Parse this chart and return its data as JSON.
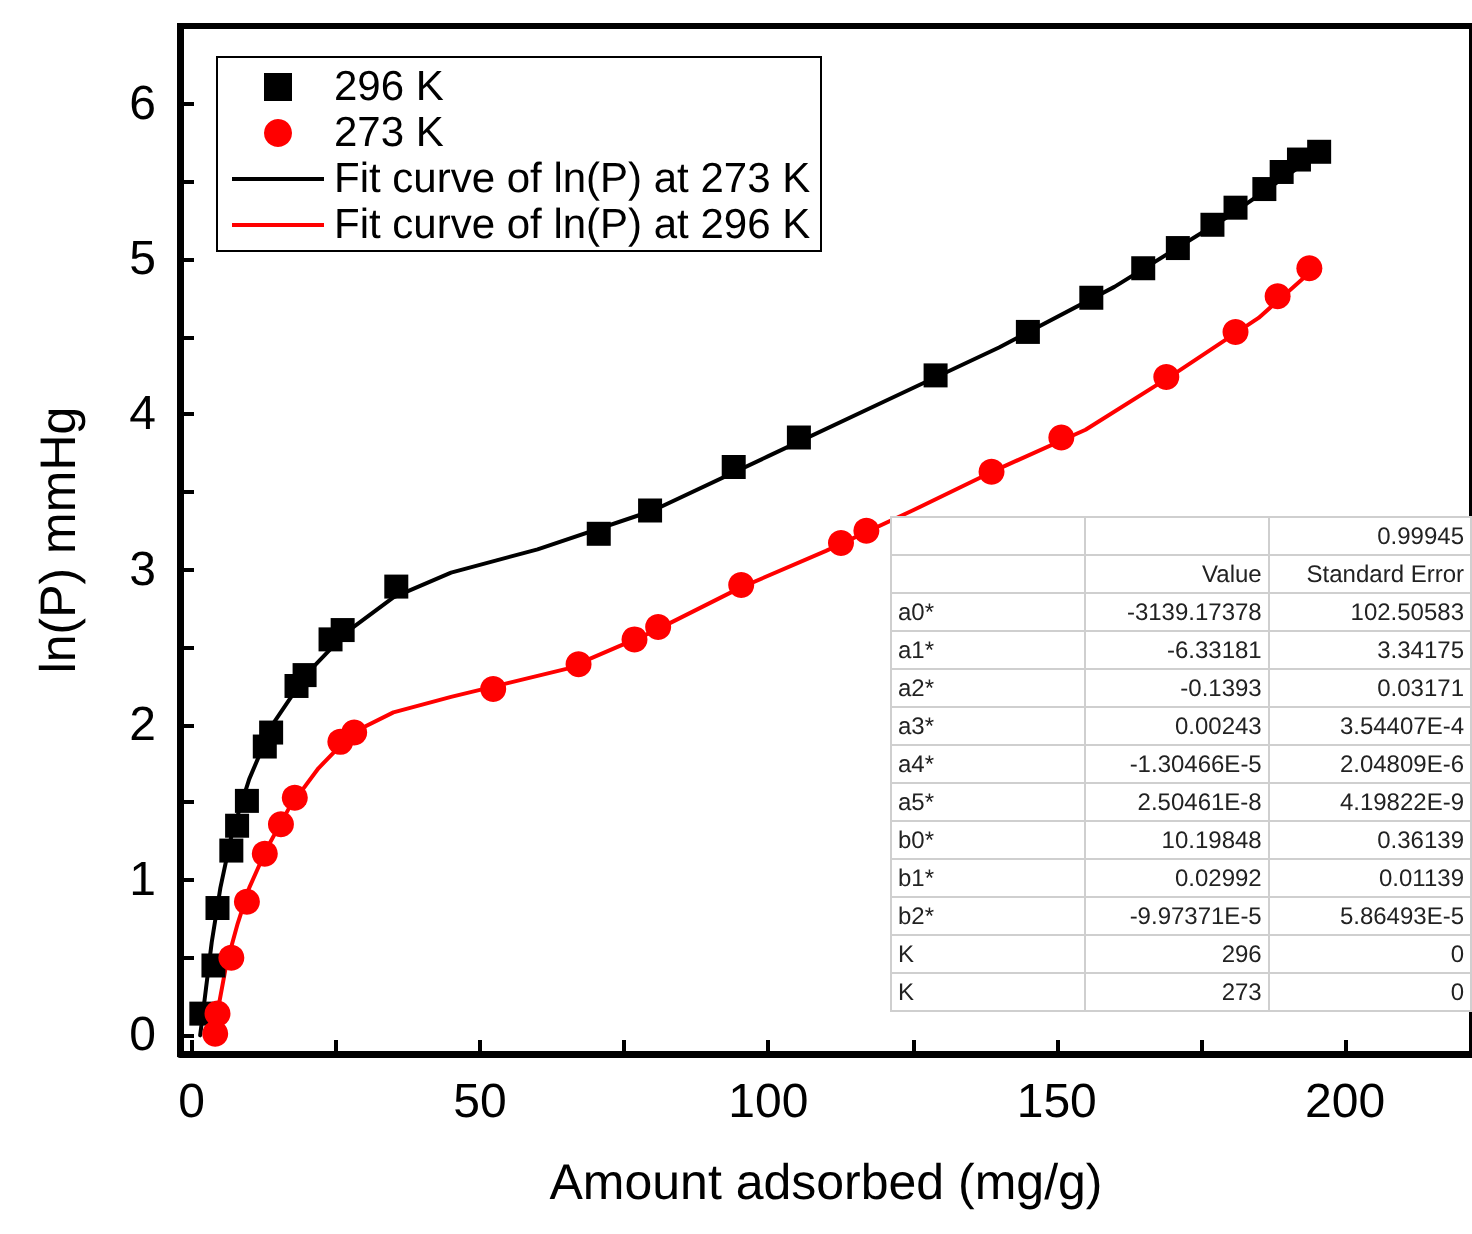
{
  "chart_data": {
    "type": "scatter",
    "xlabel": "Amount adsorbed (mg/g)",
    "ylabel": "ln(P) mmHg",
    "xlim": [
      -2,
      222
    ],
    "ylim": [
      -0.12,
      6.5
    ],
    "xticks": [
      0,
      {
        "value": 25,
        "label": null
      },
      50,
      {
        "value": 75,
        "label": null
      },
      100,
      {
        "value": 125,
        "label": null
      },
      150,
      {
        "value": 175,
        "label": null
      },
      200
    ],
    "yticks": [
      0,
      {
        "value": 0.5,
        "label": null
      },
      1,
      {
        "value": 1.5,
        "label": null
      },
      2,
      {
        "value": 2.5,
        "label": null
      },
      3,
      {
        "value": 3.5,
        "label": null
      },
      4,
      {
        "value": 4.5,
        "label": null
      },
      5,
      {
        "value": 5.5,
        "label": null
      },
      6
    ],
    "legend": "top left",
    "grid": false,
    "series": [
      {
        "name": "296 K",
        "type": "scatter",
        "marker": "square",
        "color": "#000000",
        "x": [
          1.7,
          3.8,
          4.5,
          6.9,
          7.9,
          9.6,
          12.7,
          13.8,
          18.2,
          19.6,
          24.1,
          26.2,
          35.5,
          70.6,
          79.5,
          94,
          105.3,
          129,
          145,
          156,
          165,
          171,
          177,
          181,
          186,
          189,
          192,
          195.5
        ],
        "values": [
          0.14,
          0.45,
          0.82,
          1.19,
          1.35,
          1.51,
          1.86,
          1.95,
          2.25,
          2.32,
          2.55,
          2.61,
          2.89,
          3.23,
          3.38,
          3.66,
          3.85,
          4.25,
          4.53,
          4.75,
          4.94,
          5.07,
          5.22,
          5.33,
          5.45,
          5.56,
          5.64,
          5.69
        ]
      },
      {
        "name": "273 K",
        "type": "scatter",
        "marker": "circle",
        "color": "#ff0000",
        "x": [
          4.1,
          4.5,
          6.9,
          9.6,
          12.7,
          15.5,
          17.9,
          25.8,
          28.2,
          52.3,
          67.1,
          76.8,
          80.9,
          95.3,
          112.6,
          117,
          138.7,
          150.8,
          169,
          181,
          188.3,
          193.8
        ],
        "values": [
          0.01,
          0.14,
          0.5,
          0.86,
          1.17,
          1.36,
          1.53,
          1.89,
          1.95,
          2.23,
          2.39,
          2.55,
          2.63,
          2.9,
          3.17,
          3.25,
          3.63,
          3.85,
          4.24,
          4.53,
          4.76,
          4.94
        ]
      },
      {
        "name": "Fit curve of ln(P) at 273 K",
        "type": "line",
        "marker": "none",
        "line_style": "solid",
        "color": "#000000",
        "x": [
          1.5,
          2.5,
          3.5,
          5,
          7,
          10,
          14,
          20,
          27,
          35,
          45,
          60,
          80,
          100,
          120,
          140,
          160,
          180,
          197
        ],
        "values": [
          0,
          0.3,
          0.6,
          0.95,
          1.3,
          1.65,
          2.0,
          2.33,
          2.6,
          2.82,
          2.98,
          3.13,
          3.38,
          3.73,
          4.08,
          4.43,
          4.82,
          5.28,
          5.72
        ]
      },
      {
        "name": "Fit curve of ln(P) at 296 K",
        "type": "line",
        "marker": "none",
        "line_style": "solid",
        "color": "#ff0000",
        "x": [
          3.5,
          4.5,
          6,
          8,
          10,
          13,
          17,
          22,
          28,
          35,
          45,
          55,
          65,
          80,
          95,
          110,
          125,
          140,
          155,
          170,
          185,
          195
        ],
        "values": [
          -0.05,
          0.15,
          0.45,
          0.72,
          0.95,
          1.2,
          1.47,
          1.72,
          1.95,
          2.08,
          2.18,
          2.27,
          2.36,
          2.6,
          2.88,
          3.12,
          3.38,
          3.65,
          3.9,
          4.25,
          4.62,
          4.95
        ]
      }
    ],
    "annotations": [
      "0.99945",
      "Value",
      "Standard Error",
      "a0*",
      "-3139.17378",
      "102.50583",
      "a1*",
      "-6.33181",
      "3.34175",
      "a2*",
      "-0.1393",
      "0.03171",
      "a3*",
      "0.00243",
      "3.54407E-4",
      "a4*",
      "-1.30466E-5",
      "2.04809E-6",
      "a5*",
      "2.50461E-8",
      "4.19822E-9",
      "b0*",
      "10.19848",
      "0.36139",
      "b1*",
      "0.02992",
      "0.01139",
      "b2*",
      "-9.97371E-5",
      "5.86493E-5",
      "K",
      "296",
      "0",
      "K",
      "273",
      "0"
    ]
  }
}
